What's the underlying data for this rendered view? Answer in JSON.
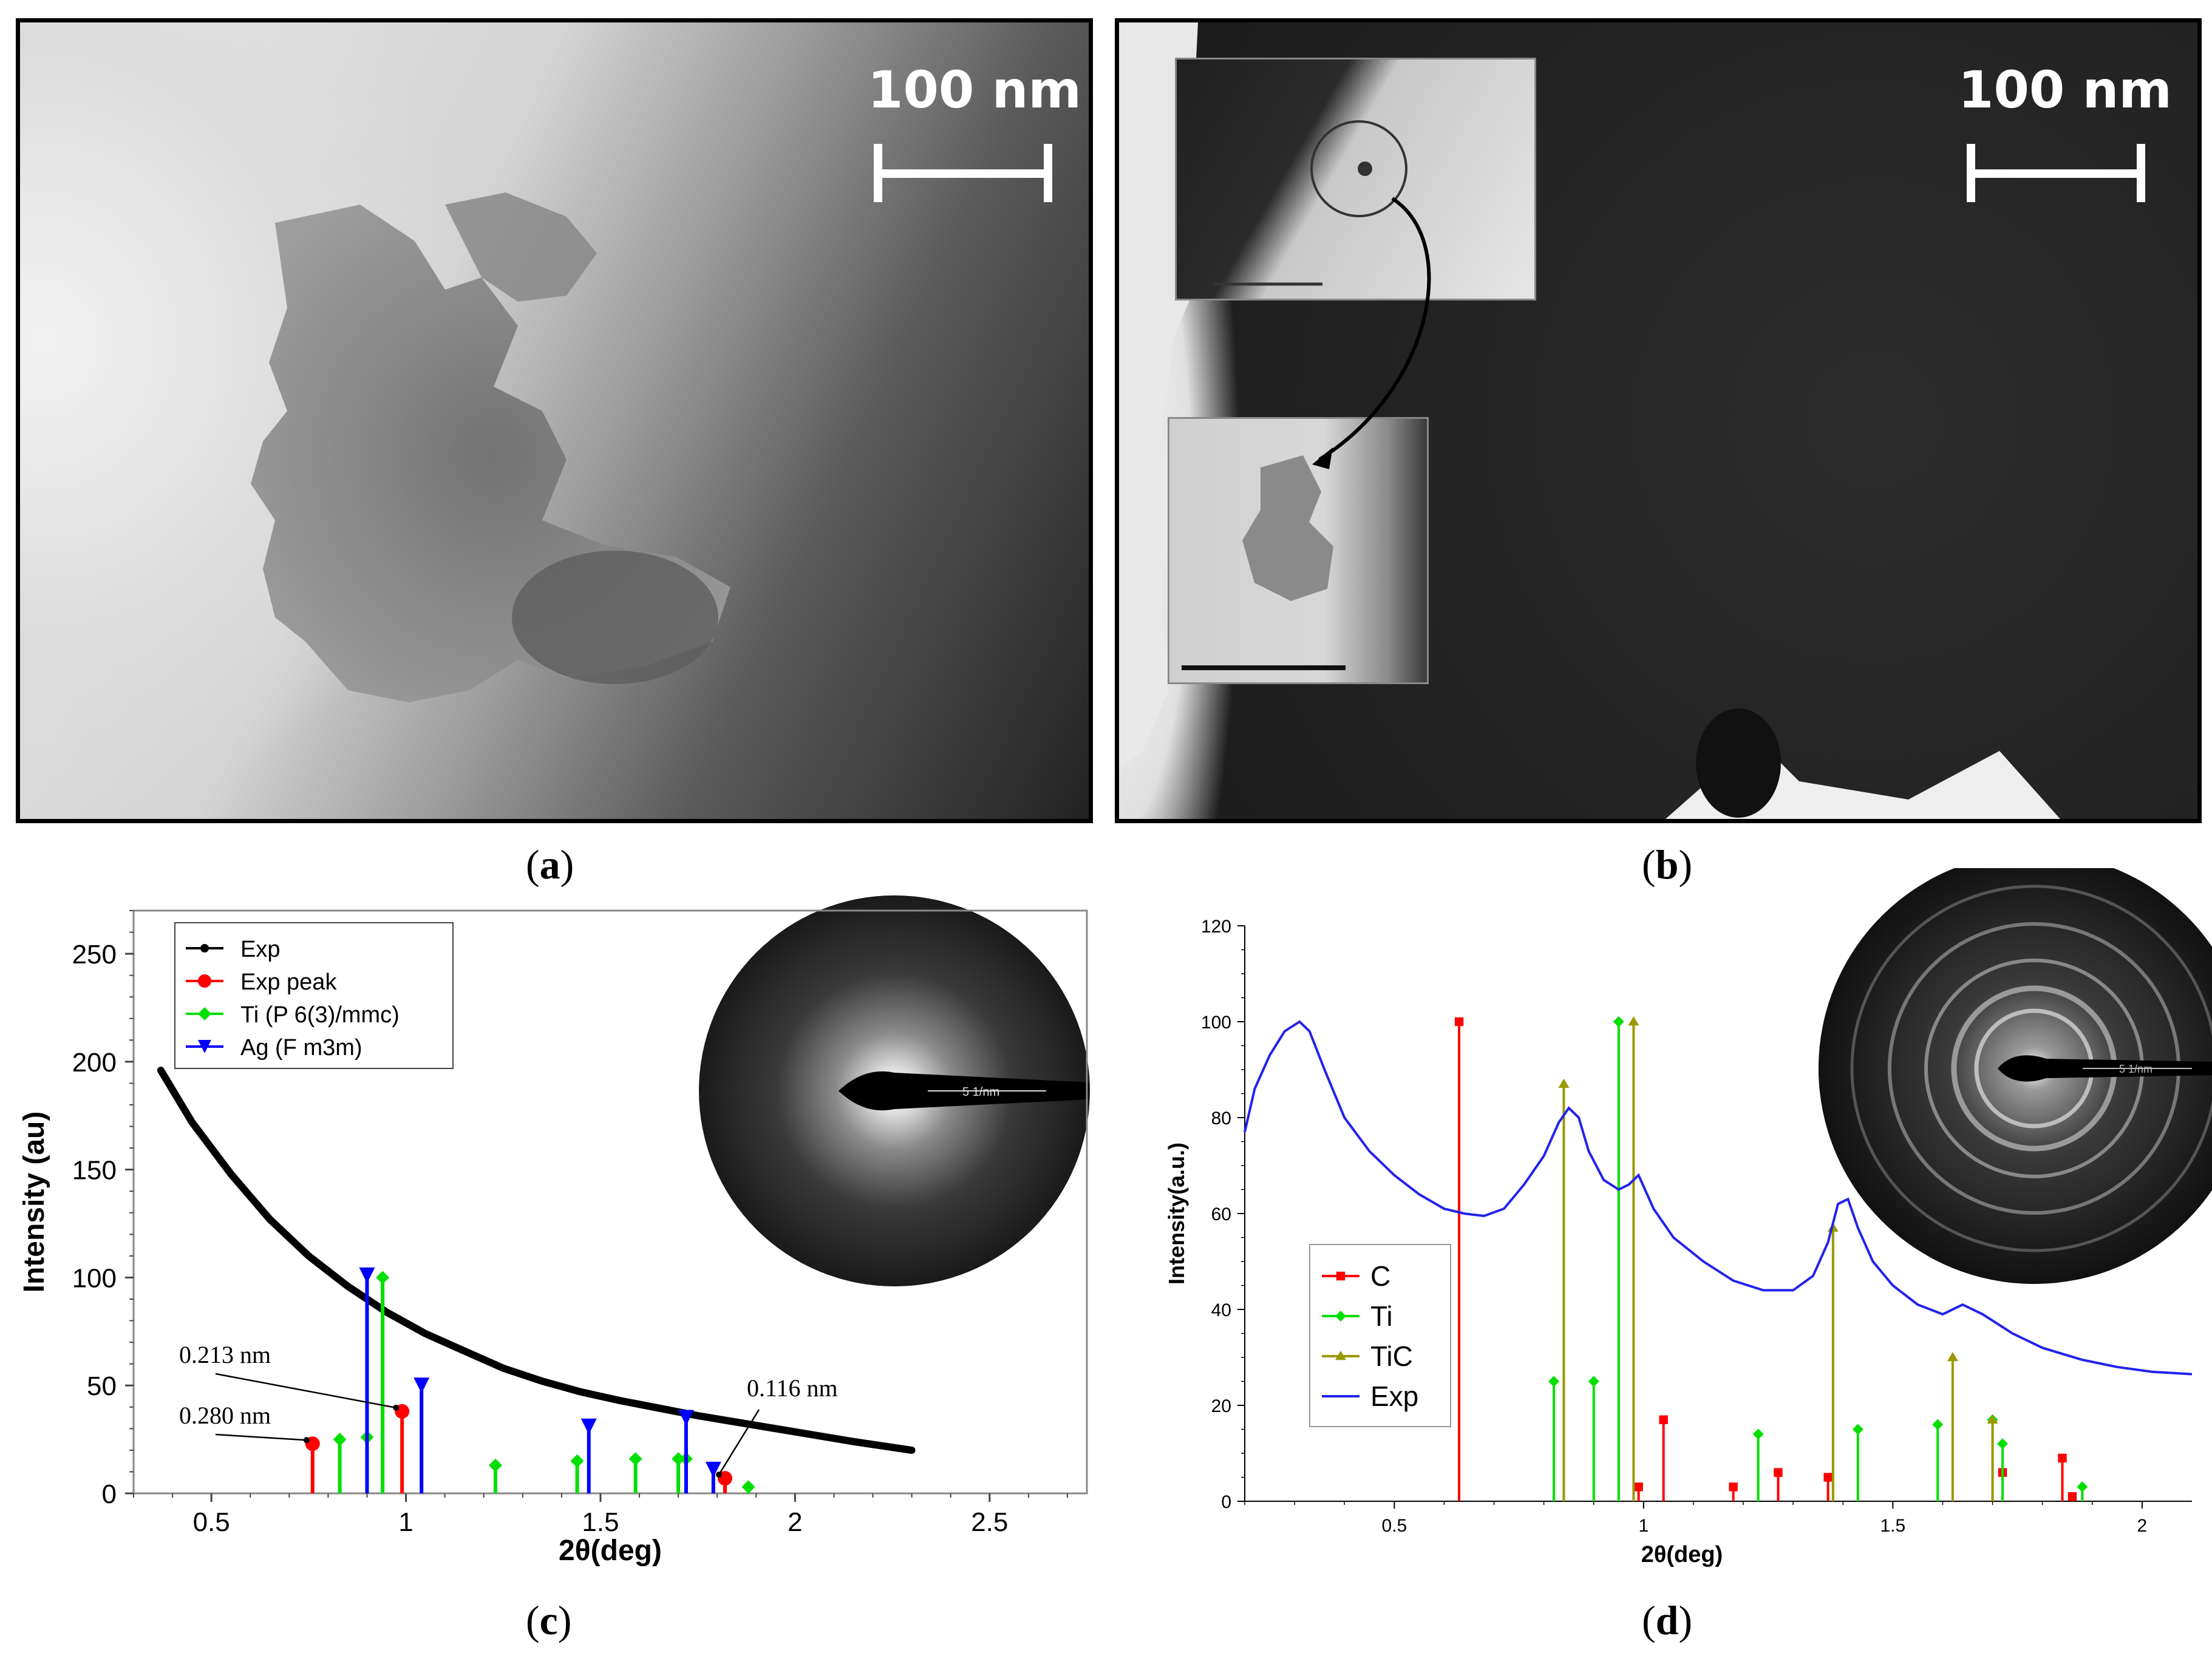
{
  "panels": {
    "a": {
      "caption_open": "(",
      "caption_letter": "a",
      "caption_close": ")",
      "scale_label": "100 nm"
    },
    "b": {
      "caption_open": "(",
      "caption_letter": "b",
      "caption_close": ")",
      "scale_label": "100 nm"
    },
    "c": {
      "caption_open": "(",
      "caption_letter": "c",
      "caption_close": ")",
      "inset_label": "5 1/nm"
    },
    "d": {
      "caption_open": "(",
      "caption_letter": "d",
      "caption_close": ")",
      "inset_label": "5 1/nm"
    }
  },
  "colors": {
    "exp_peak": "#ff0000",
    "ti": "#00e000",
    "ag": "#0000ff",
    "tic": "#999900",
    "exp_line": "#2222ee",
    "exp_dots": "#000000"
  },
  "chart_data": [
    {
      "type": "scatter",
      "panel": "c",
      "xlabel": "2θ(deg)",
      "ylabel": "Intensity (au)",
      "xlim": [
        0.3,
        2.75
      ],
      "ylim": [
        0,
        270
      ],
      "xticks": [
        "0.5",
        "1",
        "1.5",
        "2",
        "2.5"
      ],
      "xtick_values": [
        0.5,
        1,
        1.5,
        2,
        2.5
      ],
      "yticks": [
        "0",
        "50",
        "100",
        "150",
        "200",
        "250"
      ],
      "ytick_values": [
        0,
        50,
        100,
        150,
        200,
        250
      ],
      "grid": false,
      "legend_position": "top-left",
      "legend": [
        "Exp",
        "Exp peak",
        "Ti (P 6(3)/mmc)",
        "Ag (F m3m)"
      ],
      "series": [
        {
          "name": "Exp",
          "kind": "curve",
          "x": [
            0.37,
            0.45,
            0.55,
            0.65,
            0.75,
            0.85,
            0.95,
            1.05,
            1.15,
            1.25,
            1.35,
            1.45,
            1.55,
            1.65,
            1.75,
            1.85,
            1.95,
            2.05,
            2.15,
            2.3
          ],
          "y": [
            196,
            172,
            148,
            127,
            110,
            96,
            84,
            74,
            66,
            58,
            52,
            47,
            43,
            39.5,
            36,
            33,
            30,
            27,
            24,
            20
          ]
        },
        {
          "name": "Exp peak",
          "kind": "stem",
          "x": [
            0.76,
            0.99,
            1.82
          ],
          "y": [
            23,
            38,
            7
          ]
        },
        {
          "name": "Ti (P 6(3)/mmc)",
          "kind": "stem",
          "x": [
            0.83,
            0.9,
            0.94,
            1.23,
            1.44,
            1.59,
            1.7,
            1.72,
            1.88
          ],
          "y": [
            25,
            26,
            100,
            13,
            15,
            16,
            16,
            16,
            3
          ]
        },
        {
          "name": "Ag (F m3m)",
          "kind": "stem",
          "x": [
            0.9,
            1.04,
            1.47,
            1.72,
            1.79
          ],
          "y": [
            101,
            50,
            31,
            35,
            11
          ]
        }
      ],
      "annotations": [
        {
          "text": "0.280 nm",
          "points_to": [
            0.76,
            23
          ]
        },
        {
          "text": "0.213 nm",
          "points_to": [
            0.99,
            38
          ]
        },
        {
          "text": "0.116 nm",
          "points_to": [
            1.82,
            7
          ]
        }
      ]
    },
    {
      "type": "line",
      "panel": "d",
      "xlabel": "2θ(deg)",
      "ylabel": "Intensity(a.u.)",
      "xlim": [
        0.2,
        2.1
      ],
      "ylim": [
        0,
        120
      ],
      "xticks": [
        "0.5",
        "1",
        "1.5",
        "2"
      ],
      "xtick_values": [
        0.5,
        1,
        1.5,
        2
      ],
      "yticks": [
        "0",
        "20",
        "40",
        "60",
        "80",
        "100",
        "120"
      ],
      "ytick_values": [
        0,
        20,
        40,
        60,
        80,
        100,
        120
      ],
      "grid": false,
      "legend_position": "bottom-left",
      "legend": [
        "C",
        "Ti",
        "TiC",
        "Exp"
      ],
      "series": [
        {
          "name": "C",
          "kind": "stem",
          "x": [
            0.63,
            0.99,
            1.04,
            1.18,
            1.27,
            1.37,
            1.72,
            1.84,
            1.86
          ],
          "y": [
            100,
            3,
            17,
            3,
            6,
            5,
            6,
            9,
            1
          ]
        },
        {
          "name": "Ti",
          "kind": "stem",
          "x": [
            0.82,
            0.9,
            0.95,
            1.23,
            1.43,
            1.59,
            1.7,
            1.72,
            1.88
          ],
          "y": [
            25,
            25,
            100,
            14,
            15,
            16,
            17,
            12,
            3
          ]
        },
        {
          "name": "TiC",
          "kind": "stem",
          "x": [
            0.84,
            0.98,
            1.38,
            1.62,
            1.7
          ],
          "y": [
            87,
            100,
            57,
            30,
            17
          ]
        },
        {
          "name": "Exp",
          "kind": "curve",
          "x": [
            0.2,
            0.22,
            0.25,
            0.28,
            0.31,
            0.33,
            0.36,
            0.4,
            0.45,
            0.5,
            0.55,
            0.6,
            0.64,
            0.68,
            0.72,
            0.76,
            0.8,
            0.83,
            0.85,
            0.87,
            0.89,
            0.92,
            0.95,
            0.97,
            0.99,
            1.02,
            1.06,
            1.12,
            1.18,
            1.24,
            1.3,
            1.34,
            1.37,
            1.39,
            1.41,
            1.43,
            1.46,
            1.5,
            1.55,
            1.6,
            1.64,
            1.68,
            1.74,
            1.8,
            1.88,
            1.95,
            2.02,
            2.1
          ],
          "y": [
            77,
            86,
            93,
            98,
            100,
            98,
            90,
            80,
            73,
            68,
            64,
            61,
            60,
            59.5,
            61,
            66,
            72,
            79,
            82,
            80,
            73,
            67,
            65,
            66,
            68,
            61,
            55,
            50,
            46,
            44,
            44,
            47,
            54,
            62,
            63,
            57,
            50,
            45,
            41,
            39,
            41,
            39,
            35,
            32,
            29.5,
            28,
            27,
            26.5
          ]
        }
      ]
    }
  ]
}
